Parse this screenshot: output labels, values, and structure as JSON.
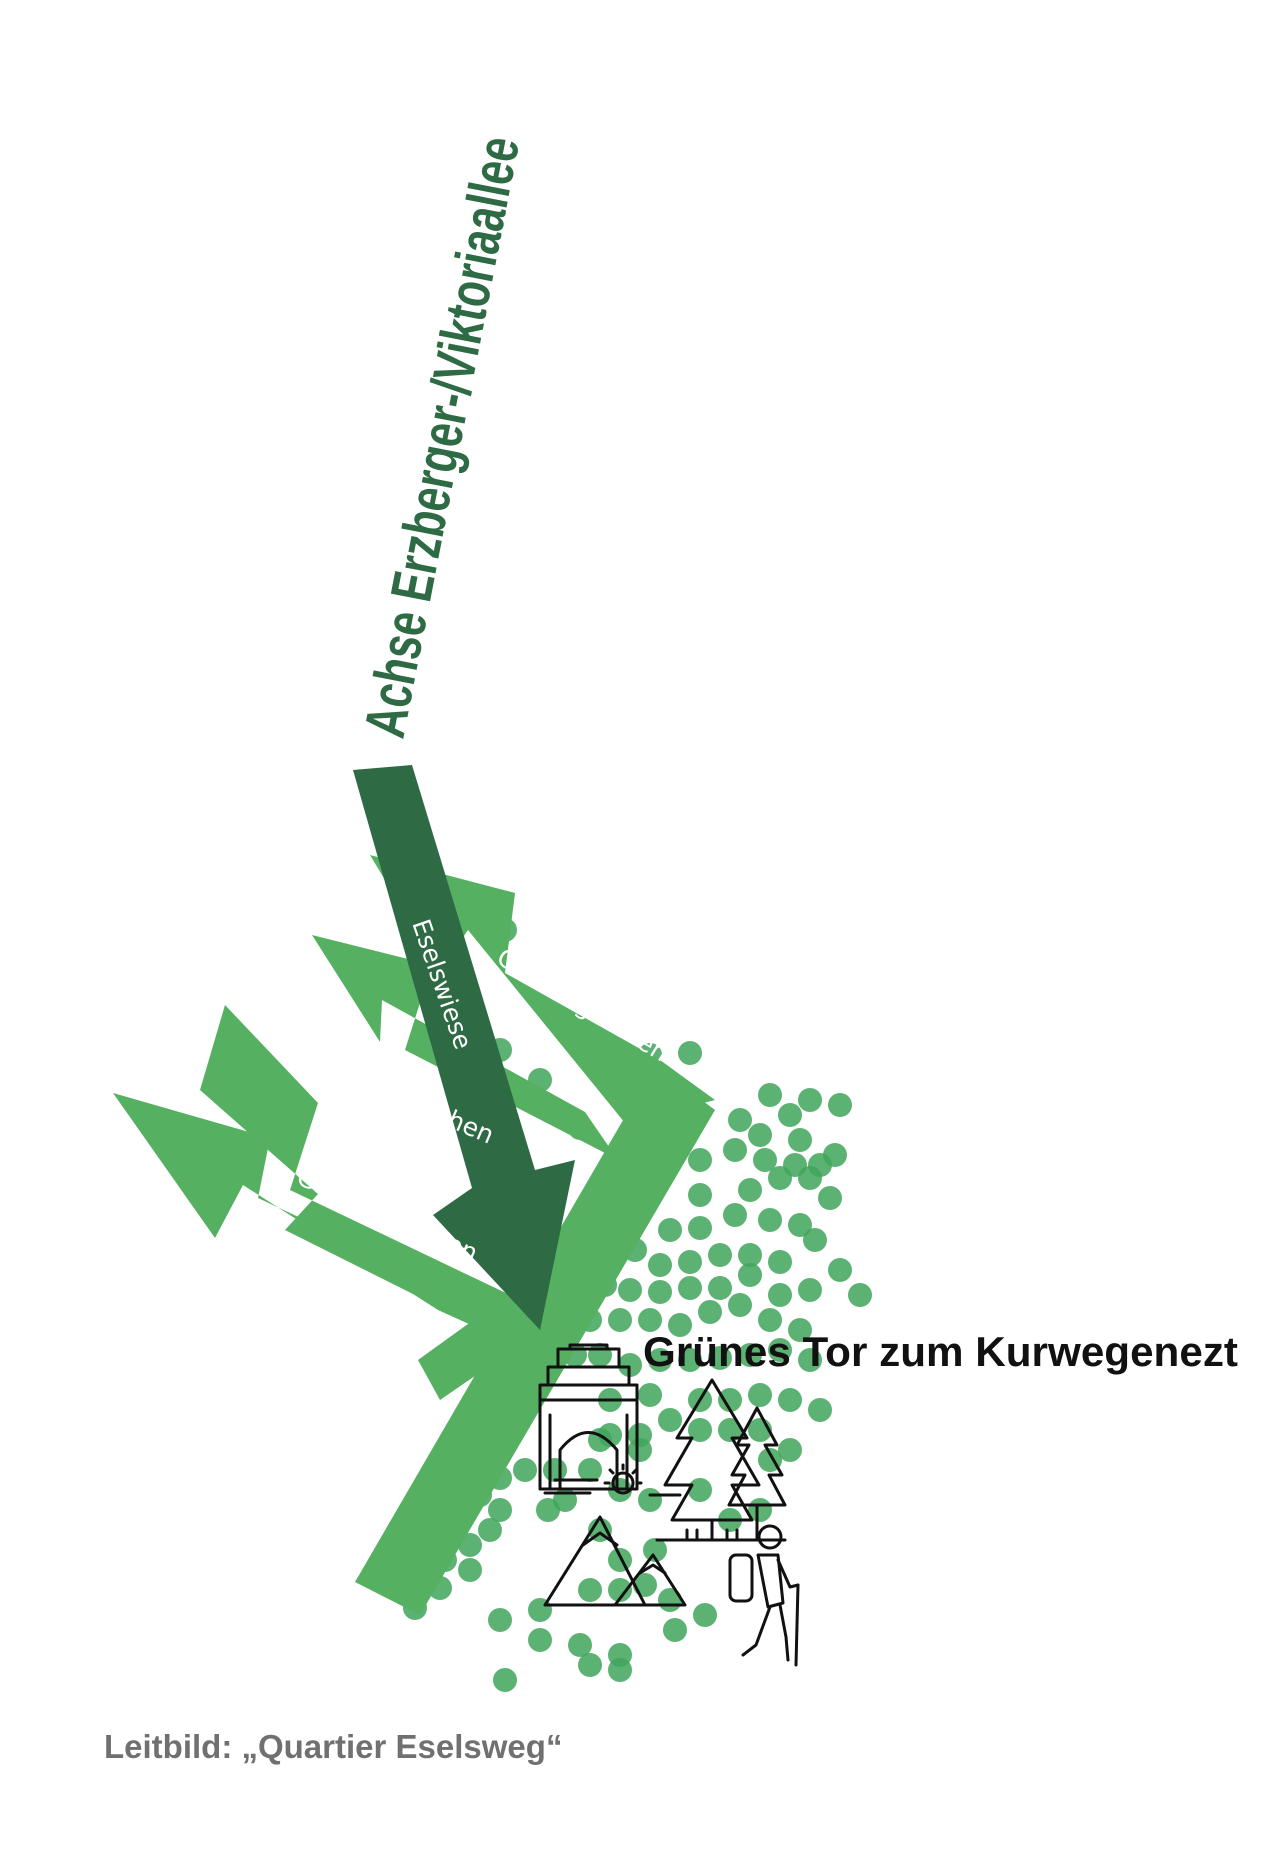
{
  "axis_title": "Achse Erzberger-/Viktoriaallee",
  "main_arrow_label": "Eselswiese",
  "branch_labels": [
    "Grünfingerchen",
    "Grünfingerchen",
    "Grünfingerchen"
  ],
  "gate_title": "Grünes Tor zum Kurwegenezt",
  "caption": "Leitbild: „Quartier Eselsweg“",
  "colors": {
    "dark_green": "#2e6b44",
    "light_green": "#55b062",
    "dot_green": "#3fa45a",
    "caption_gray": "#707070",
    "icon_black": "#111111",
    "label_white": "#ffffff"
  },
  "icons": [
    "gate-icon",
    "forest-icon",
    "mountains-sun-icon",
    "hiker-icon"
  ]
}
